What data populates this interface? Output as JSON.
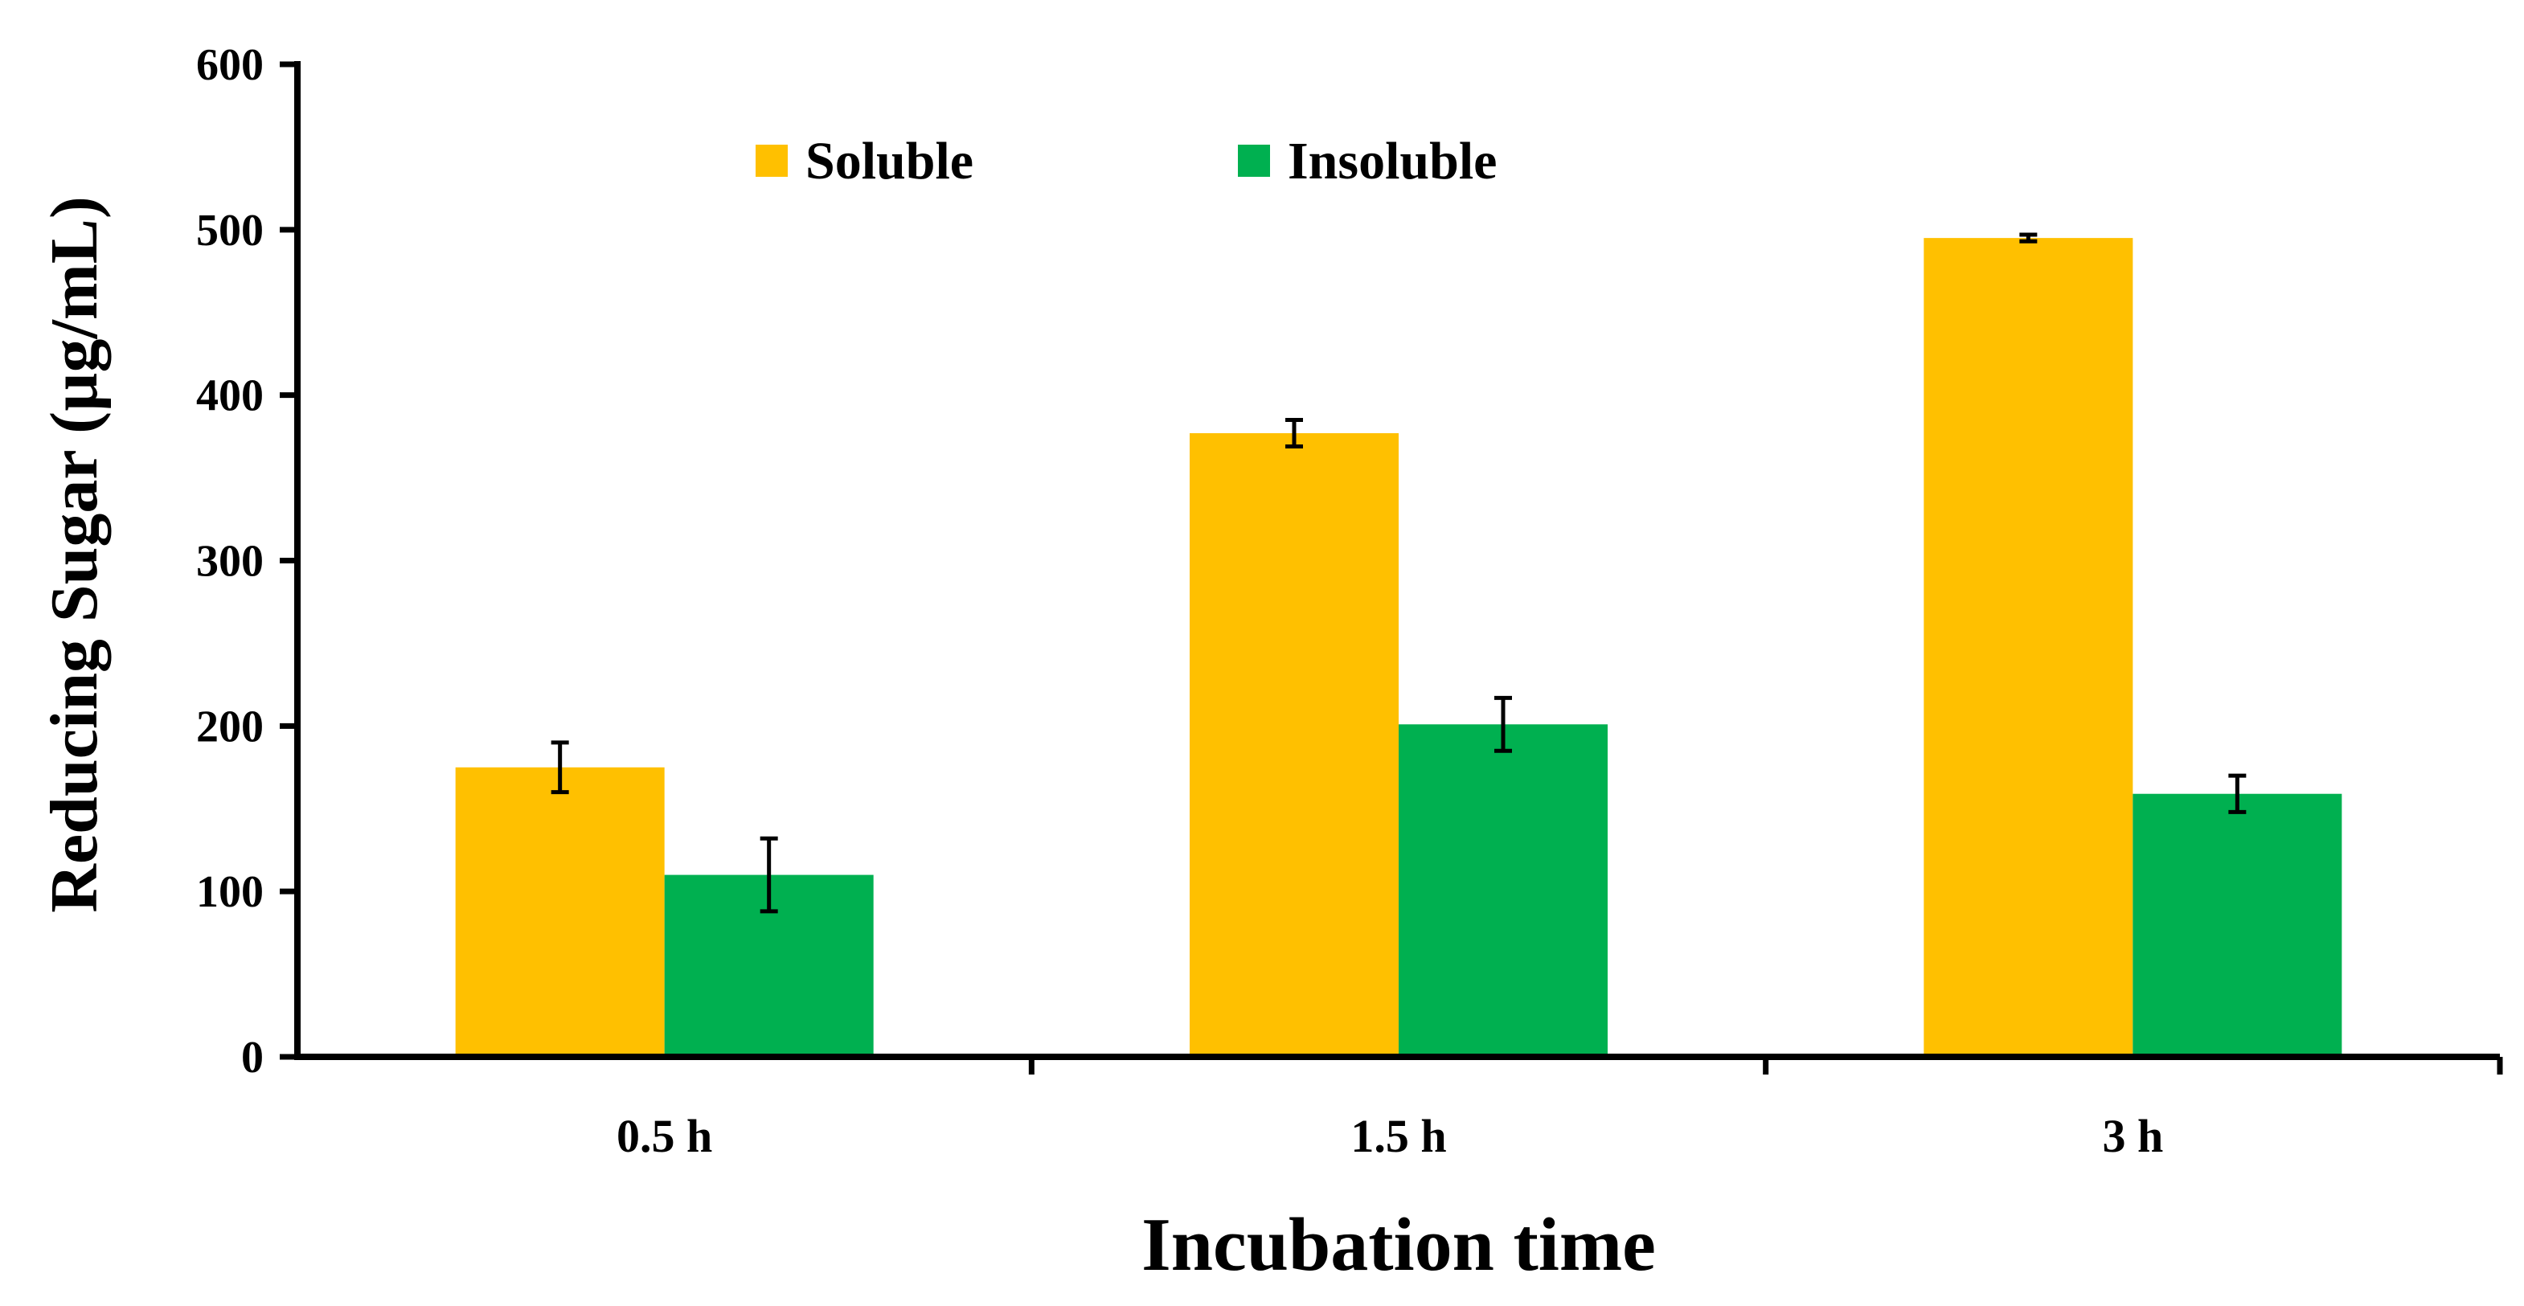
{
  "chart_data": {
    "type": "bar",
    "title": "",
    "xlabel": "Incubation time",
    "ylabel": "Reducing Sugar (µg/mL)",
    "categories": [
      "0.5 h",
      "1.5 h",
      "3 h"
    ],
    "series": [
      {
        "name": "Soluble",
        "color": "#FFC000",
        "values": [
          175,
          377,
          495
        ],
        "errors": [
          15,
          8,
          2
        ]
      },
      {
        "name": "Insoluble",
        "color": "#00B050",
        "values": [
          110,
          201,
          159
        ],
        "errors": [
          22,
          16,
          11
        ]
      }
    ],
    "ylim": [
      0,
      600
    ],
    "yticks": [
      "0",
      "100",
      "200",
      "300",
      "400",
      "500",
      "600"
    ],
    "ytick_values": [
      0,
      100,
      200,
      300,
      400,
      500,
      600
    ],
    "grid": false,
    "legend_position": "top-center"
  }
}
